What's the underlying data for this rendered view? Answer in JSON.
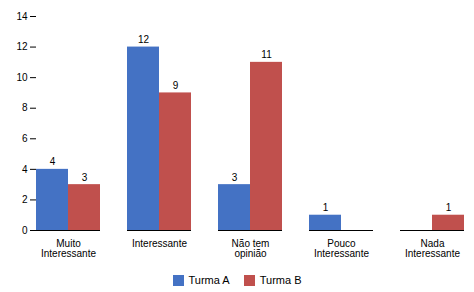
{
  "chart_data": {
    "type": "bar",
    "categories": [
      "Muito\nInteressante",
      "Interessante",
      "Não tem\nopinião",
      "Pouco\nInteressante",
      "Nada\nInteressante"
    ],
    "series": [
      {
        "name": "Turma A",
        "color": "#4472C4",
        "values": [
          4,
          12,
          3,
          1,
          0
        ]
      },
      {
        "name": "Turma B",
        "color": "#C0504D",
        "values": [
          3,
          9,
          11,
          0,
          1
        ]
      }
    ],
    "ylim": [
      0,
      14
    ],
    "yticks": [
      0,
      2,
      4,
      6,
      8,
      10,
      12,
      14
    ],
    "grid": false,
    "legend": "bottom",
    "data_labels": true
  }
}
